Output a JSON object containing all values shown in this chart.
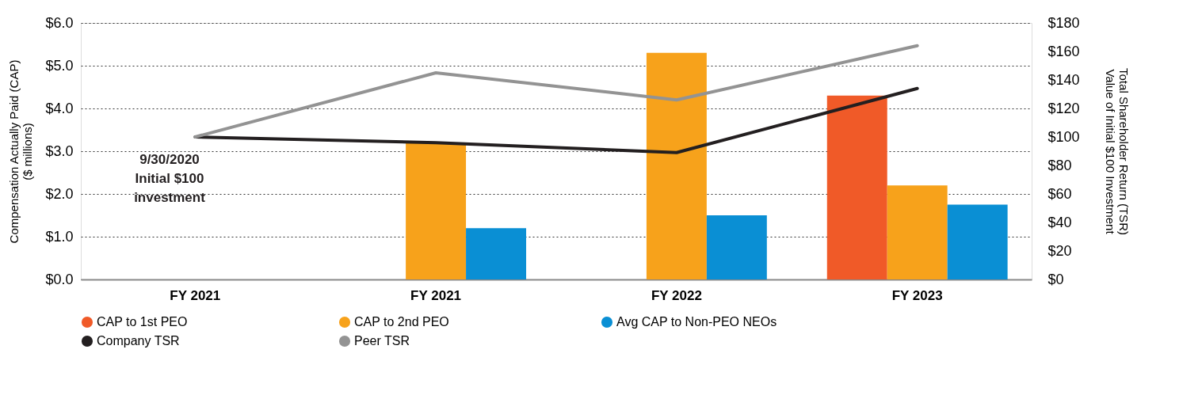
{
  "chart_data": {
    "type": "bar",
    "categories": [
      "FY 2021",
      "FY 2021",
      "FY 2022",
      "FY 2023"
    ],
    "series": [
      {
        "name": "CAP to 1st PEO",
        "color": "#f05a28",
        "values": [
          null,
          null,
          null,
          4.3
        ]
      },
      {
        "name": "CAP to 2nd PEO",
        "color": "#f7a21b",
        "values": [
          null,
          3.2,
          5.3,
          2.2
        ]
      },
      {
        "name": "Avg CAP to Non-PEO NEOs",
        "color": "#0a8fd4",
        "values": [
          null,
          1.2,
          1.5,
          1.75
        ]
      },
      {
        "name": "Company TSR",
        "type": "line",
        "axis": "y2",
        "color": "#231f20",
        "values": [
          100,
          96,
          89,
          134
        ]
      },
      {
        "name": "Peer TSR",
        "type": "line",
        "axis": "y2",
        "color": "#939393",
        "values": [
          100,
          145,
          126,
          164
        ]
      }
    ],
    "ylabel": "Compensation Actually Paid (CAP)\n($ millions)",
    "y2label": "Total Shareholder Return (TSR)\nValue of Initial $100 Investment",
    "ylim": [
      0,
      6
    ],
    "yticks": [
      {
        "value": 0,
        "label": "$0.0"
      },
      {
        "value": 1,
        "label": "$1.0"
      },
      {
        "value": 2,
        "label": "$2.0"
      },
      {
        "value": 3,
        "label": "$3.0"
      },
      {
        "value": 4,
        "label": "$4.0"
      },
      {
        "value": 5,
        "label": "$5.0"
      },
      {
        "value": 6,
        "label": "$6.0"
      }
    ],
    "y2lim": [
      0,
      180
    ],
    "y2ticks": [
      {
        "value": 0,
        "label": "$0"
      },
      {
        "value": 20,
        "label": "$20"
      },
      {
        "value": 40,
        "label": "$40"
      },
      {
        "value": 60,
        "label": "$60"
      },
      {
        "value": 80,
        "label": "$80"
      },
      {
        "value": 100,
        "label": "$100"
      },
      {
        "value": 120,
        "label": "$120"
      },
      {
        "value": 140,
        "label": "$140"
      },
      {
        "value": 160,
        "label": "$160"
      },
      {
        "value": 180,
        "label": "$180"
      }
    ],
    "annotations": [
      "9/30/2020\nInitial $100\ninvestment"
    ],
    "grid": "y",
    "legend": "bottom"
  }
}
